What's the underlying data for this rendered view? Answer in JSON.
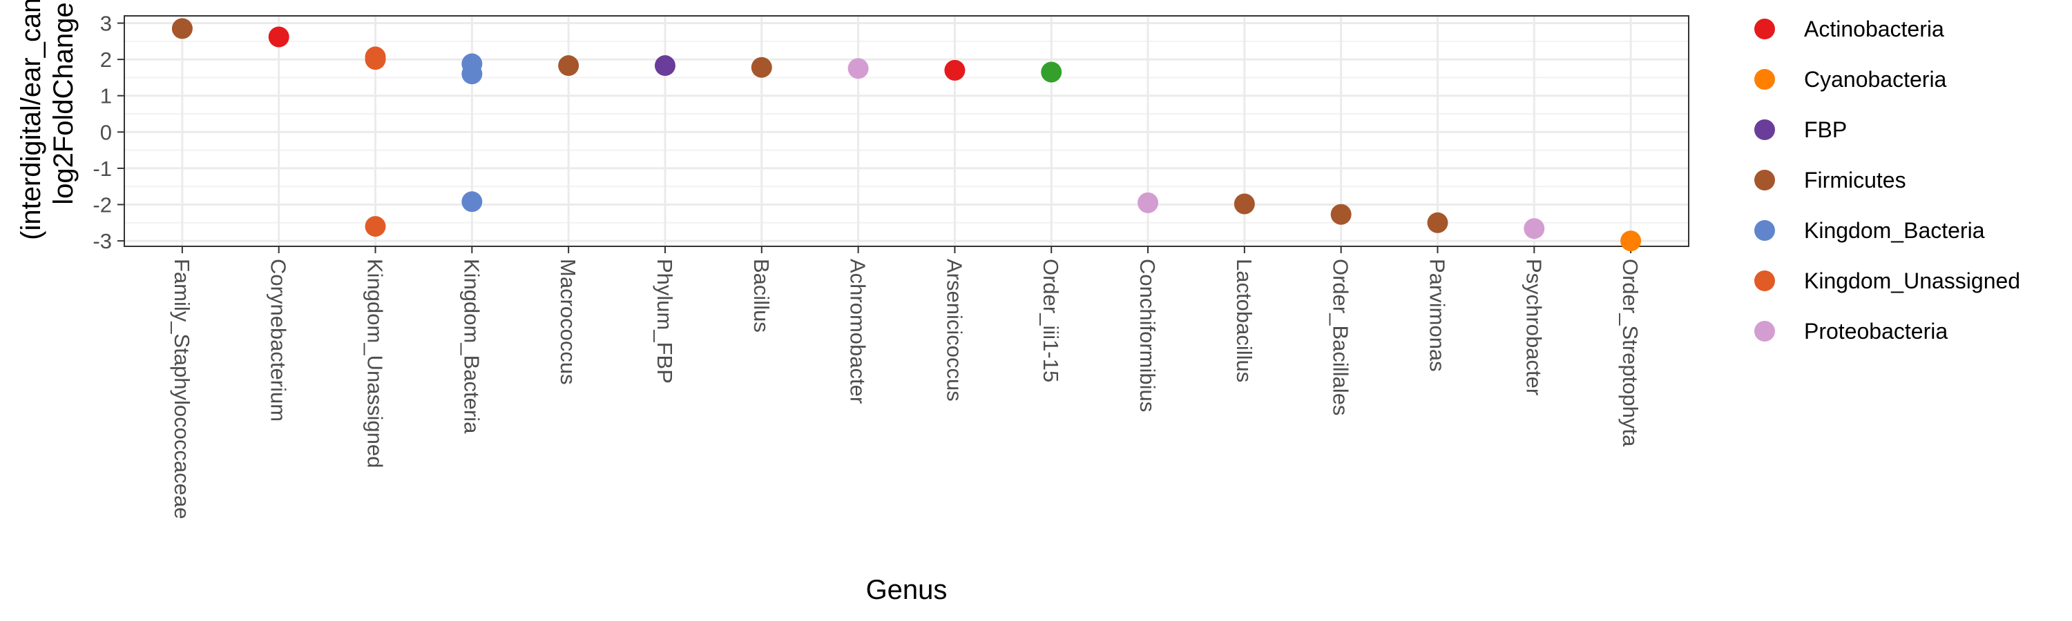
{
  "chart_data": {
    "type": "scatter",
    "xlabel": "Genus",
    "ylabel_lines": [
      "(interdigital/ear_canal)",
      "log2FoldChange"
    ],
    "ylim": [
      -3.15,
      3.2
    ],
    "yticks": [
      3,
      2,
      1,
      0,
      -1,
      -2,
      -3
    ],
    "ytick_labels": [
      "3",
      "2",
      "1",
      "0",
      "-1",
      "-2",
      "-3"
    ],
    "grid": true,
    "legend_position": "right",
    "categories": [
      "Family_Staphylococcaceae",
      "Corynebacterium",
      "Kingdom_Unassigned",
      "Kingdom_Bacteria",
      "Macrococcus",
      "Phylum_FBP",
      "Bacillus",
      "Achromobacter",
      "Arsenicicoccus",
      "Order_iii1-15",
      "Conchiformibius",
      "Lactobacillus",
      "Order_Bacillales",
      "Parvimonas",
      "Psychrobacter",
      "Order_Streptophyta"
    ],
    "legend": [
      {
        "name": "Actinobacteria",
        "color": "#e41a1c"
      },
      {
        "name": "Cyanobacteria",
        "color": "#ff7f00"
      },
      {
        "name": "FBP",
        "color": "#6a3d9a"
      },
      {
        "name": "Firmicutes",
        "color": "#a6562b"
      },
      {
        "name": "Kingdom_Bacteria",
        "color": "#6185cc"
      },
      {
        "name": "Kingdom_Unassigned",
        "color": "#e15b27"
      },
      {
        "name": "Proteobacteria",
        "color": "#d49dd1"
      }
    ],
    "extra_color": "#33a02c",
    "points": [
      {
        "x": "Family_Staphylococcaceae",
        "y": 2.85,
        "phylum": "Firmicutes"
      },
      {
        "x": "Corynebacterium",
        "y": 2.62,
        "phylum": "Actinobacteria"
      },
      {
        "x": "Kingdom_Unassigned",
        "y": 2.07,
        "phylum": "Kingdom_Unassigned"
      },
      {
        "x": "Kingdom_Unassigned",
        "y": 2.0,
        "phylum": "Kingdom_Unassigned"
      },
      {
        "x": "Kingdom_Unassigned",
        "y": -2.6,
        "phylum": "Kingdom_Unassigned"
      },
      {
        "x": "Kingdom_Bacteria",
        "y": 1.88,
        "phylum": "Kingdom_Bacteria"
      },
      {
        "x": "Kingdom_Bacteria",
        "y": 1.6,
        "phylum": "Kingdom_Bacteria"
      },
      {
        "x": "Kingdom_Bacteria",
        "y": -1.92,
        "phylum": "Kingdom_Bacteria"
      },
      {
        "x": "Macrococcus",
        "y": 1.83,
        "phylum": "Firmicutes"
      },
      {
        "x": "Phylum_FBP",
        "y": 1.83,
        "phylum": "FBP"
      },
      {
        "x": "Bacillus",
        "y": 1.78,
        "phylum": "Firmicutes"
      },
      {
        "x": "Achromobacter",
        "y": 1.75,
        "phylum": "Proteobacteria"
      },
      {
        "x": "Arsenicicoccus",
        "y": 1.7,
        "phylum": "Actinobacteria"
      },
      {
        "x": "Order_iii1-15",
        "y": 1.65,
        "phylum": "unlisted"
      },
      {
        "x": "Conchiformibius",
        "y": -1.95,
        "phylum": "Proteobacteria"
      },
      {
        "x": "Lactobacillus",
        "y": -1.98,
        "phylum": "Firmicutes"
      },
      {
        "x": "Order_Bacillales",
        "y": -2.27,
        "phylum": "Firmicutes"
      },
      {
        "x": "Parvimonas",
        "y": -2.5,
        "phylum": "Firmicutes"
      },
      {
        "x": "Psychrobacter",
        "y": -2.66,
        "phylum": "Proteobacteria"
      },
      {
        "x": "Order_Streptophyta",
        "y": -3.0,
        "phylum": "Cyanobacteria"
      }
    ]
  }
}
